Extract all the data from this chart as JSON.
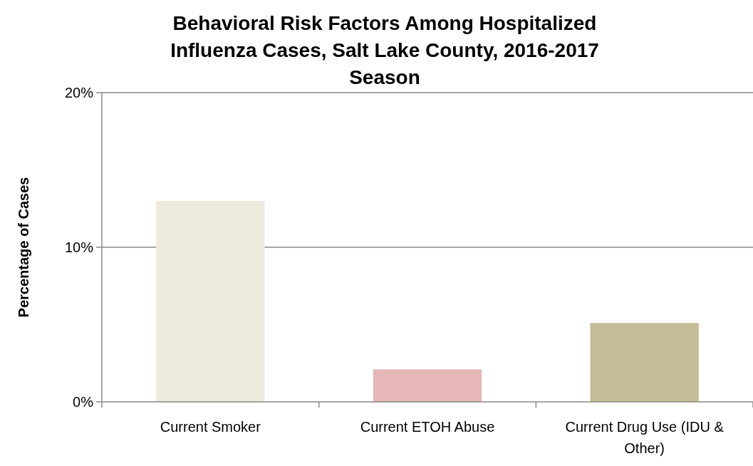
{
  "chart_data": {
    "type": "bar",
    "title": "Behavioral Risk Factors Among Hospitalized Influenza Cases, Salt Lake County, 2016-2017 Season",
    "ylabel": "Percentage of Cases",
    "categories": [
      "Current Smoker",
      "Current ETOH Abuse",
      "Current Drug Use (IDU & Other)"
    ],
    "values": [
      13,
      2.1,
      5.1
    ],
    "colors": [
      "#eeebde",
      "#e6b7b7",
      "#c4bc96"
    ],
    "ylim": [
      0,
      20
    ],
    "yticks": [
      {
        "value": 0,
        "label": "0%"
      },
      {
        "value": 10,
        "label": "10%"
      },
      {
        "value": 20,
        "label": "20%"
      }
    ],
    "grid": "y"
  }
}
